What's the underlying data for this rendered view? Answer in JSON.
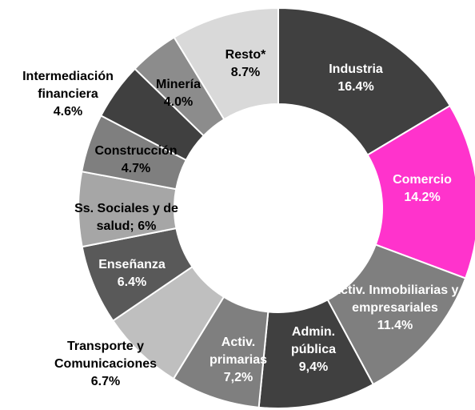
{
  "chart_data": {
    "type": "donut",
    "categories": [
      "Industria",
      "Comercio",
      "Activ. Inmobiliarias y empresariales",
      "Admin. pública",
      "Activ. primarias",
      "Transporte y Comunicaciones",
      "Enseñanza",
      "Ss. Sociales y de salud;",
      "Construcción",
      "Intermediación financiera",
      "Minería",
      "Resto*"
    ],
    "values": [
      16.4,
      14.2,
      11.4,
      9.4,
      7.2,
      6.7,
      6.4,
      6,
      4.7,
      4.6,
      4.0,
      8.7
    ],
    "value_labels": [
      "16.4%",
      "14.2%",
      "11.4%",
      "9,4%",
      "7,2%",
      "6.7%",
      "6.4%",
      "6%",
      "4.7%",
      "4.6%",
      "4.0%",
      "8.7%"
    ],
    "colors": [
      "#404040",
      "#ff33cc",
      "#7f7f7f",
      "#404040",
      "#7f7f7f",
      "#bfbfbf",
      "#595959",
      "#a6a6a6",
      "#7f7f7f",
      "#404040",
      "#8c8c8c",
      "#d9d9d9"
    ]
  }
}
